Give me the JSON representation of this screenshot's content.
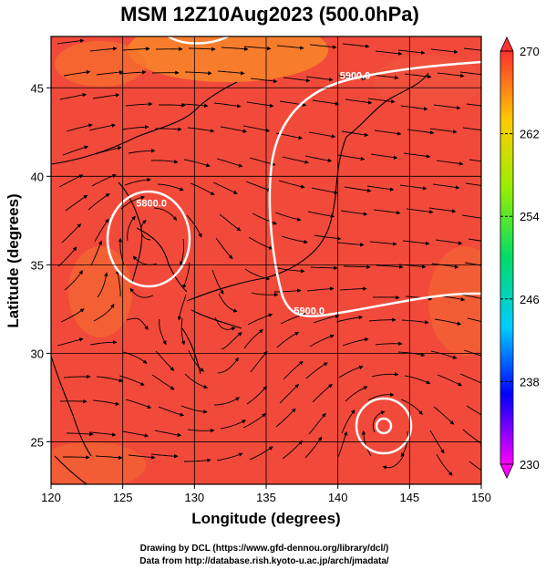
{
  "chart_data": {
    "type": "heatmap",
    "title": "MSM 12Z10Aug2023 (500.0hPa)",
    "xlabel": "Longitude (degrees)",
    "ylabel": "Latitude  (degrees)",
    "xlim": [
      120,
      150
    ],
    "ylim": [
      22.6,
      47.9
    ],
    "xticks": [
      120,
      125,
      130,
      135,
      140,
      145,
      150
    ],
    "yticks": [
      25,
      30,
      35,
      40,
      45
    ],
    "grid": true,
    "colorbar": {
      "min": 230,
      "max": 270,
      "ticks": [
        230,
        238,
        246,
        254,
        262,
        270
      ],
      "colors": [
        "#ff00ff",
        "#0000ff",
        "#00ccff",
        "#00dd66",
        "#99ee00",
        "#ffcc00",
        "#ff3030"
      ]
    },
    "contours": [
      {
        "label": "5900.0",
        "label_lon": 141.2,
        "label_lat": 45.5
      },
      {
        "label": "5800.0",
        "label_lon": 127.0,
        "label_lat": 38.3
      },
      {
        "label": "5900.0",
        "label_lon": 138.0,
        "label_lat": 32.2
      }
    ]
  },
  "credits": {
    "line1": "Drawing by DCL (https://www.gfd-dennou.org/library/dcl/)",
    "line2": "Data from http://database.rish.kyoto-u.ac.jp/arch/jmadata/"
  }
}
